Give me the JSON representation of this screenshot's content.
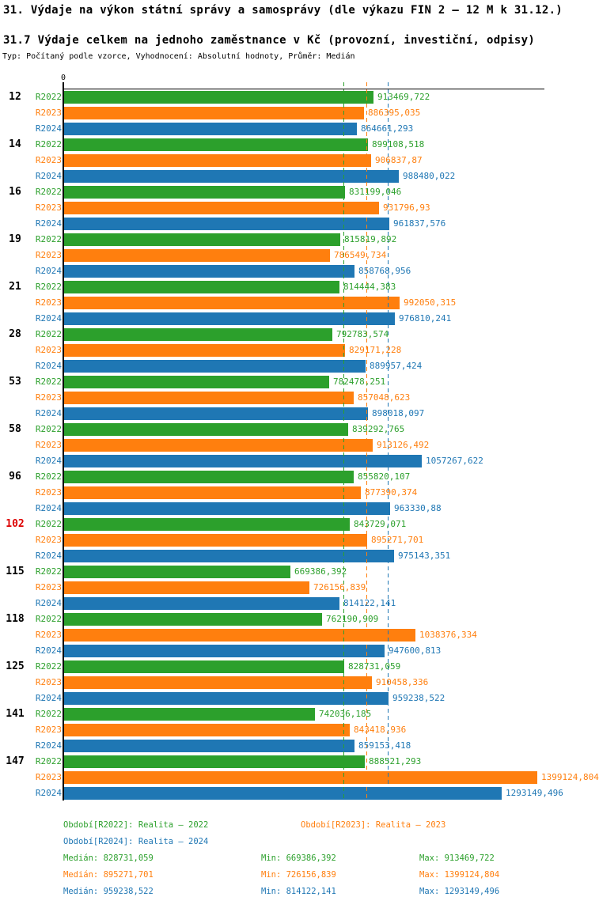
{
  "page": {
    "title": "31. Výdaje na výkon státní správy a samosprávy (dle výkazu FIN 2 – 12 M k 31.12.)",
    "subtitle": "31.7 Výdaje celkem na jednoho zaměstnance v Kč (provozní, investiční, odpisy)",
    "meta": "Typ: Počítaný podle vzorce, Vyhodnocení: Absolutní hodnoty, Průměr: Medián"
  },
  "colors": {
    "r2022": "#2ca02c",
    "r2023": "#ff7f0e",
    "r2024": "#1f77b4",
    "highlight_category": "#dd0000",
    "category": "#000000",
    "axis": "#000000"
  },
  "chart_data": {
    "type": "bar",
    "orientation": "horizontal",
    "title": "31.7 Výdaje celkem na jednoho zaměstnance v Kč (provozní, investiční, odpisy)",
    "unit": "Kč",
    "axis": {
      "min": 0,
      "max": 1422000,
      "zero_label": "0",
      "grid": false
    },
    "categories": [
      "12",
      "14",
      "16",
      "19",
      "21",
      "28",
      "53",
      "58",
      "96",
      "102",
      "115",
      "118",
      "125",
      "141",
      "147"
    ],
    "highlighted_category": "102",
    "series": [
      {
        "name": "R2022",
        "color": "#2ca02c",
        "values": [
          913469.722,
          899108.518,
          831199.046,
          815819.892,
          814444.383,
          792783.574,
          782478.251,
          839292.765,
          855820.107,
          843729.071,
          669386.392,
          762190.909,
          828731.059,
          742036.185,
          888521.293
        ],
        "labels": [
          "913469,722",
          "899108,518",
          "831199,046",
          "815819,892",
          "814444,383",
          "792783,574",
          "782478,251",
          "839292,765",
          "855820,107",
          "843729,071",
          "669386,392",
          "762190,909",
          "828731,059",
          "742036,185",
          "888521,293"
        ],
        "median": 828731.059
      },
      {
        "name": "R2023",
        "color": "#ff7f0e",
        "values": [
          886395.035,
          906837.87,
          931796.93,
          786549.734,
          992050.315,
          829171.228,
          857048.623,
          913126.492,
          877390.374,
          895271.701,
          726156.839,
          1038376.334,
          910458.336,
          843418.936,
          1399124.804
        ],
        "labels": [
          "886395,035",
          "906837,87",
          "931796,93",
          "786549,734",
          "992050,315",
          "829171,228",
          "857048,623",
          "913126,492",
          "877390,374",
          "895271,701",
          "726156,839",
          "1038376,334",
          "910458,336",
          "843418,936",
          "1399124,804"
        ],
        "median": 895271.701
      },
      {
        "name": "R2024",
        "color": "#1f77b4",
        "values": [
          864661.293,
          988480.022,
          961837.576,
          858768.956,
          976810.241,
          889957.424,
          898018.097,
          1057267.622,
          963330.88,
          975143.351,
          814122.141,
          947600.813,
          959238.522,
          859153.418,
          1293149.496
        ],
        "labels": [
          "864661,293",
          "988480,022",
          "961837,576",
          "858768,956",
          "976810,241",
          "889957,424",
          "898018,097",
          "1057267,622",
          "963330,88",
          "975143,351",
          "814122,141",
          "947600,813",
          "959238,522",
          "859153,418",
          "1293149,496"
        ],
        "median": 959238.522
      }
    ],
    "legend_position": "bottom"
  },
  "legend": {
    "items": [
      {
        "label": "Období[R2022]: Realita – 2022",
        "color": "#2ca02c",
        "col": 0,
        "row": 0
      },
      {
        "label": "Období[R2023]: Realita – 2023",
        "color": "#ff7f0e",
        "col": 1,
        "row": 0
      },
      {
        "label": "Období[R2024]: Realita – 2024",
        "color": "#1f77b4",
        "col": 0,
        "row": 1
      }
    ]
  },
  "stats": {
    "rows": [
      {
        "color": "#2ca02c",
        "median": "Medián: 828731,059",
        "min": "Min: 669386,392",
        "max": "Max: 913469,722"
      },
      {
        "color": "#ff7f0e",
        "median": "Medián: 895271,701",
        "min": "Min: 726156,839",
        "max": "Max: 1399124,804"
      },
      {
        "color": "#1f77b4",
        "median": "Medián: 959238,522",
        "min": "Min: 814122,141",
        "max": "Max: 1293149,496"
      }
    ]
  }
}
